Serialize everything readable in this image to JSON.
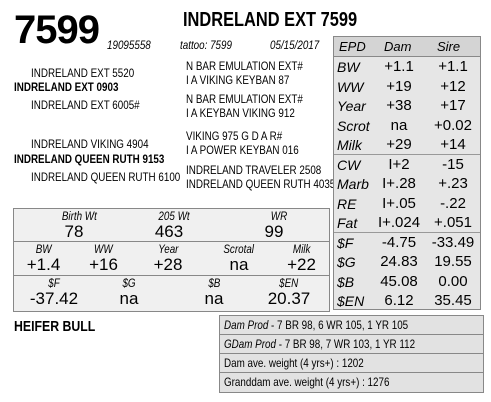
{
  "header": {
    "lot_number": "7599",
    "animal_name": "INDRELAND EXT 7599",
    "registration": "19095558",
    "tattoo": "tattoo: 7599",
    "birth_date": "05/15/2017"
  },
  "pedigree": {
    "sire_sire_sire": "INDRELAND EXT 5520",
    "sire": "INDRELAND EXT 0903",
    "sire_dam": "INDRELAND EXT 6005#",
    "sire_ss_ss": "N BAR EMULATION EXT#",
    "sire_ss_sd": "I A VIKING KEYBAN 87",
    "sire_sd_ss": "N BAR EMULATION EXT#",
    "sire_sd_sd": "I A KEYBAN VIKING 912",
    "dam_sire": "INDRELAND VIKING 4904",
    "dam": "INDRELAND QUEEN RUTH 9153",
    "dam_dam": "INDRELAND QUEEN RUTH 6100",
    "dam_ds_s": "VIKING 975 G D A R#",
    "dam_ds_d": "I A POWER KEYBAN 016",
    "dam_dd_s": "INDRELAND TRAVELER 2508",
    "dam_dd_d": "INDRELAND QUEEN RUTH 4035"
  },
  "epd_table": {
    "headers": {
      "epd": "EPD",
      "dam": "Dam",
      "sire": "Sire"
    },
    "rows": [
      {
        "name": "BW",
        "dam": "+1.1",
        "sire": "+1.1"
      },
      {
        "name": "WW",
        "dam": "+19",
        "sire": "+12"
      },
      {
        "name": "Year",
        "dam": "+38",
        "sire": "+17"
      },
      {
        "name": "Scrot",
        "dam": "na",
        "sire": "+0.02"
      },
      {
        "name": "Milk",
        "dam": "+29",
        "sire": "+14"
      },
      {
        "name": "CW",
        "dam": "I+2",
        "sire": "-15"
      },
      {
        "name": "Marb",
        "dam": "I+.28",
        "sire": "+.23"
      },
      {
        "name": "RE",
        "dam": "I+.05",
        "sire": "-.22"
      },
      {
        "name": "Fat",
        "dam": "I+.024",
        "sire": "+.051"
      },
      {
        "name": "$F",
        "dam": "-4.75",
        "sire": "-33.49"
      },
      {
        "name": "$G",
        "dam": "24.83",
        "sire": "19.55"
      },
      {
        "name": "$B",
        "dam": "45.08",
        "sire": "0.00"
      },
      {
        "name": "$EN",
        "dam": "6.12",
        "sire": "35.45"
      }
    ]
  },
  "performance": {
    "birth_wt_label": "Birth Wt",
    "birth_wt": "78",
    "wt205_label": "205 Wt",
    "wt205": "463",
    "wr_label": "WR",
    "wr": "99",
    "bw_label": "BW",
    "bw": "+1.4",
    "ww_label": "WW",
    "ww": "+16",
    "year_label": "Year",
    "year": "+28",
    "scrotal_label": "Scrotal",
    "scrotal": "na",
    "milk_label": "Milk",
    "milk": "+22",
    "f_label": "$F",
    "f": "-37.42",
    "g_label": "$G",
    "g": "na",
    "b_label": "$B",
    "b": "na",
    "en_label": "$EN",
    "en": "20.37"
  },
  "category": "HEIFER BULL",
  "dam_info": {
    "dam_prod_label": "Dam Prod",
    "dam_prod": " - 7 BR 98, 6 WR 105, 1 YR 105",
    "gdam_prod_label": "GDam Prod",
    "gdam_prod": " - 7 BR 98, 7 WR 103, 1 YR 112",
    "dam_weight": "Dam ave. weight (4 yrs+) : 1202",
    "granddam_weight": "Granddam ave. weight (4 yrs+) : 1276"
  }
}
